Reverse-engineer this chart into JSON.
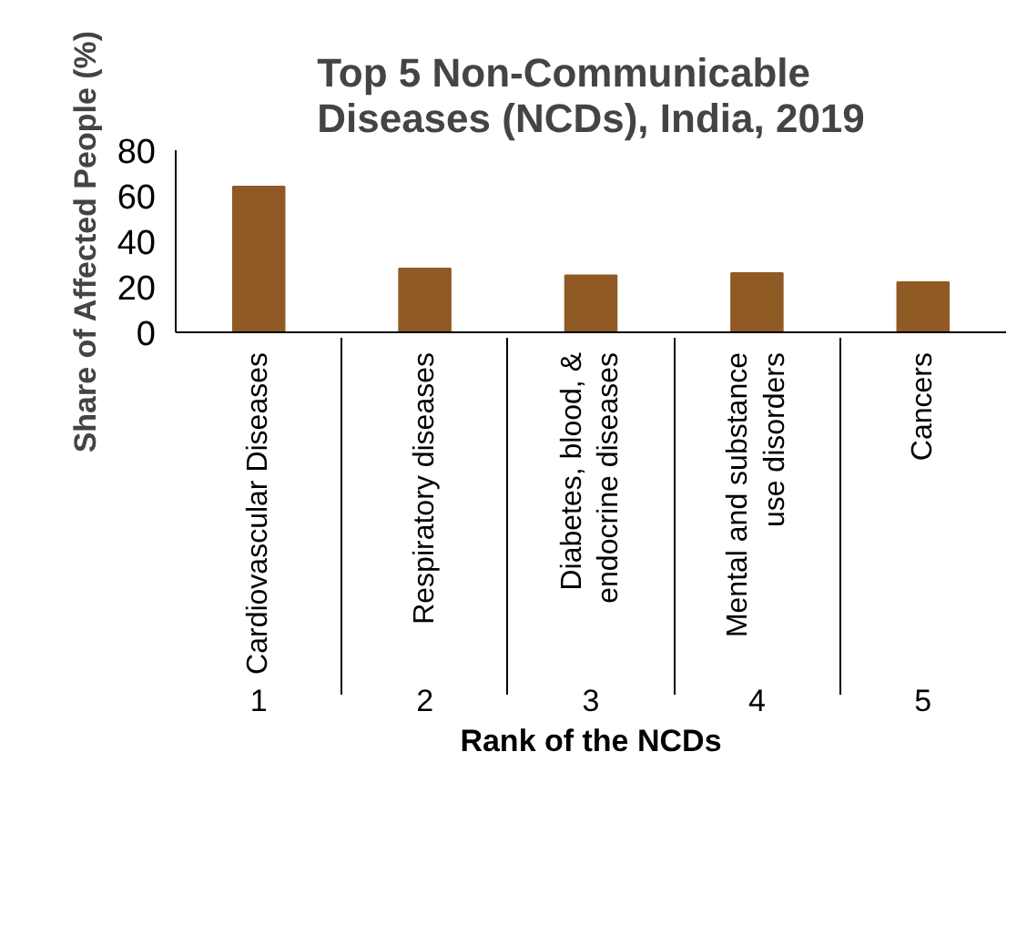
{
  "chart_data": {
    "type": "bar",
    "title": "Top 5 Non-Communicable Diseases (NCDs), India, 2019",
    "xlabel": "Rank of the NCDs",
    "ylabel": "Share of Affected People (%)",
    "categories": [
      "Cardiovascular Diseases",
      "Respiratory diseases",
      "Diabetes, blood, & endocrine diseases",
      "Mental and substance use disorders",
      "Cancers"
    ],
    "values": [
      64,
      28,
      25,
      26,
      22
    ],
    "color": "#8f5a24",
    "ylim": [
      0,
      80
    ],
    "yticks": [
      0,
      20,
      40,
      60,
      80
    ],
    "annotations": [
      "1",
      "2",
      "3",
      "4",
      "5"
    ]
  }
}
